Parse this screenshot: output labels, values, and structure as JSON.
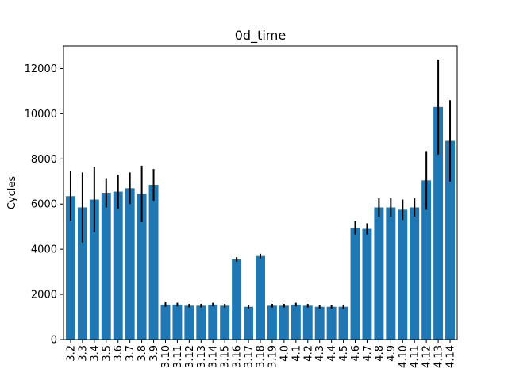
{
  "chart_data": {
    "type": "bar",
    "title": "0d_time",
    "xlabel": "",
    "ylabel": "Cycles",
    "ylim": [
      0,
      13000
    ],
    "yticks": [
      0,
      2000,
      4000,
      6000,
      8000,
      10000,
      12000
    ],
    "grid": false,
    "bar_color": "#1f77b4",
    "error_color": "#000000",
    "categories": [
      "3.2",
      "3.3",
      "3.4",
      "3.5",
      "3.6",
      "3.7",
      "3.8",
      "3.9",
      "3.10",
      "3.11",
      "3.12",
      "3.13",
      "3.14",
      "3.15",
      "3.16",
      "3.17",
      "3.18",
      "3.19",
      "4.0",
      "4.1",
      "4.2",
      "4.3",
      "4.4",
      "4.5",
      "4.6",
      "4.7",
      "4.8",
      "4.9",
      "4.10",
      "4.11",
      "4.12",
      "4.13",
      "4.14"
    ],
    "values": [
      6350,
      5850,
      6200,
      6500,
      6550,
      6700,
      6450,
      6850,
      1550,
      1550,
      1500,
      1500,
      1550,
      1500,
      3550,
      1450,
      3700,
      1500,
      1500,
      1550,
      1500,
      1450,
      1450,
      1450,
      4950,
      4900,
      5850,
      5850,
      5750,
      5850,
      7050,
      10300,
      8800
    ],
    "errors": [
      1100,
      1550,
      1450,
      650,
      750,
      700,
      1250,
      700,
      100,
      80,
      80,
      80,
      80,
      80,
      100,
      80,
      100,
      80,
      80,
      80,
      80,
      80,
      80,
      100,
      300,
      250,
      400,
      400,
      450,
      400,
      1300,
      2100,
      1800
    ]
  }
}
